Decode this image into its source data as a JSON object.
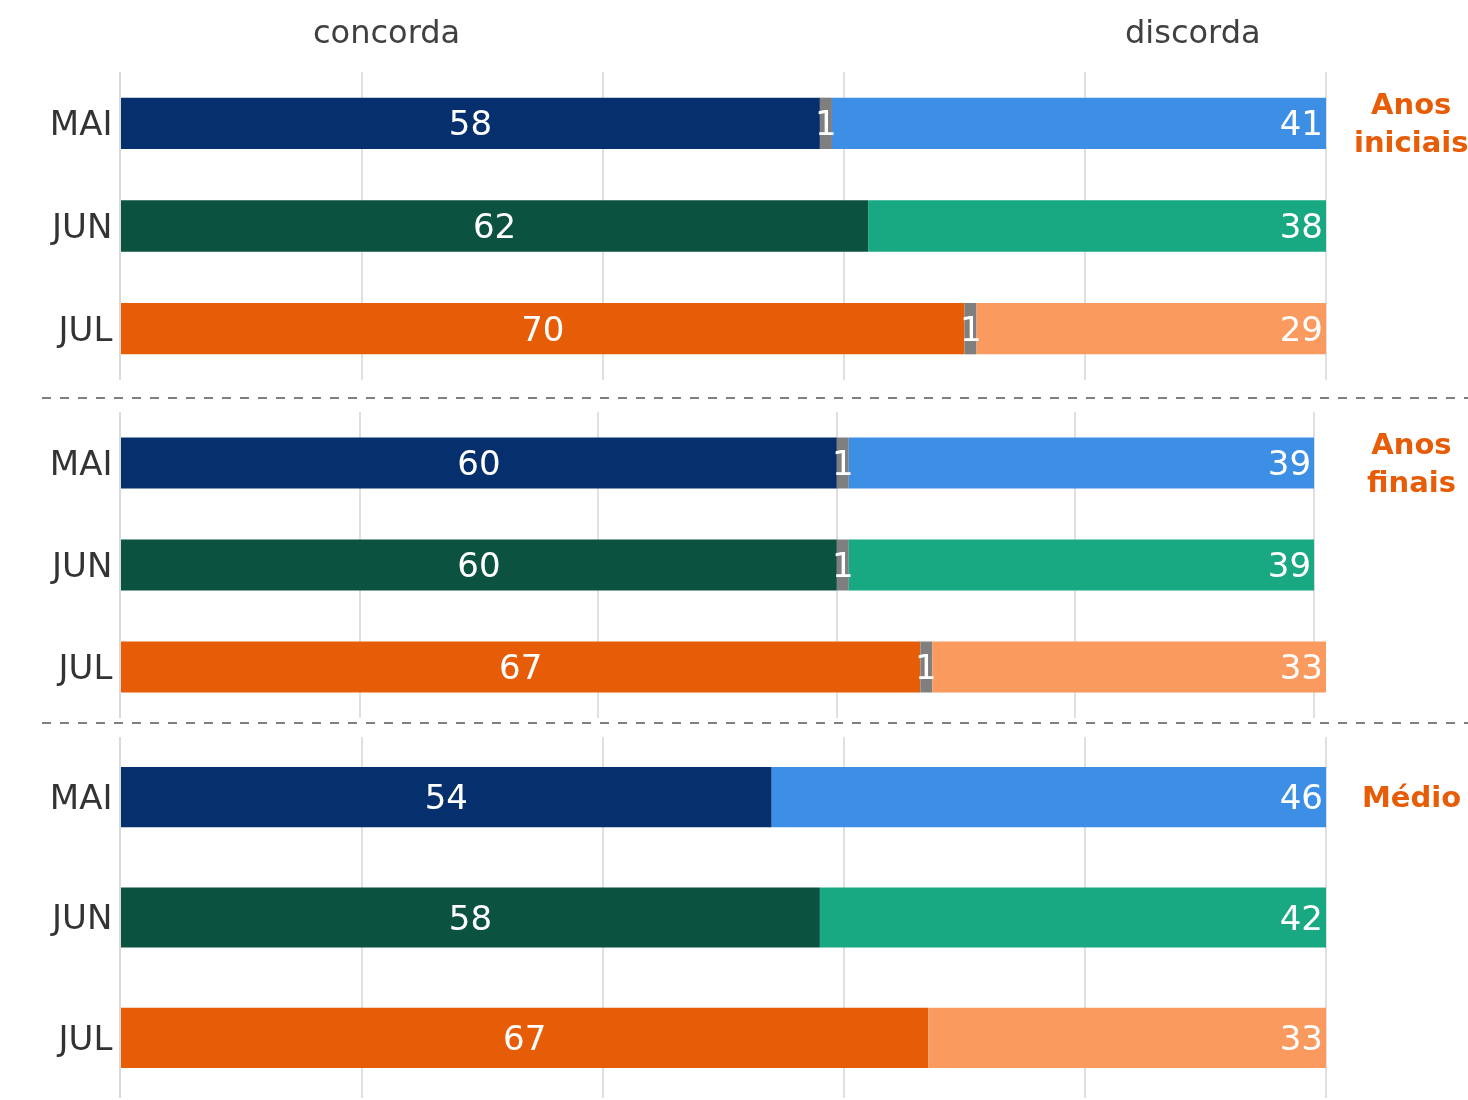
{
  "chart_data": [
    {
      "type": "bar",
      "orientation": "horizontal",
      "stacked": true,
      "annotations": [
        "Anos iniciais"
      ],
      "categories": [
        "MAI",
        "JUN",
        "JUL"
      ],
      "grid": "x",
      "tick_labels": "y",
      "legend": false,
      "data_labels": true,
      "series": [
        {
          "name": "concorda",
          "colors": [
            "#062f6e",
            "#0b5241",
            "#e65c07"
          ],
          "values": [
            58,
            62,
            70
          ]
        },
        {
          "color": "#7f7f7f",
          "values": [
            1,
            null,
            1
          ]
        },
        {
          "name": "discorda",
          "colors": [
            "#3d8fe6",
            "#18a882",
            "#fb9a5e"
          ],
          "values": [
            41,
            38,
            29
          ]
        }
      ]
    },
    {
      "type": "bar",
      "orientation": "horizontal",
      "stacked": true,
      "annotations": [
        "Anos finais"
      ],
      "categories": [
        "MAI",
        "JUN",
        "JUL"
      ],
      "grid": "x",
      "tick_labels": "y",
      "legend": false,
      "data_labels": true,
      "series": [
        {
          "colors": [
            "#062f6e",
            "#0b5241",
            "#e65c07"
          ],
          "values": [
            60,
            60,
            67
          ]
        },
        {
          "color": "#7f7f7f",
          "values": [
            1,
            1,
            1
          ]
        },
        {
          "colors": [
            "#3d8fe6",
            "#18a882",
            "#fb9a5e"
          ],
          "values": [
            39,
            39,
            33
          ]
        }
      ]
    },
    {
      "type": "bar",
      "orientation": "horizontal",
      "stacked": true,
      "annotations": [
        "Médio"
      ],
      "categories": [
        "MAI",
        "JUN",
        "JUL"
      ],
      "grid": "x",
      "tick_labels": "y",
      "legend": false,
      "data_labels": true,
      "series": [
        {
          "colors": [
            "#062f6e",
            "#0b5241",
            "#e65c07"
          ],
          "values": [
            54,
            58,
            67
          ]
        },
        {
          "color": "#7f7f7f",
          "values": [
            null,
            null,
            null
          ]
        },
        {
          "colors": [
            "#3d8fe6",
            "#18a882",
            "#fb9a5e"
          ],
          "values": [
            46,
            42,
            33
          ]
        }
      ]
    }
  ]
}
